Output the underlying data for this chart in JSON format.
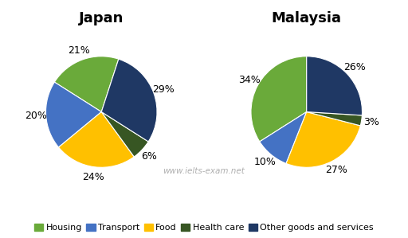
{
  "japan": {
    "title": "Japan",
    "values": [
      21,
      20,
      24,
      6,
      29
    ],
    "labels": [
      "21%",
      "20%",
      "24%",
      "6%",
      "29%"
    ],
    "startangle": 72
  },
  "malaysia": {
    "title": "Malaysia",
    "values": [
      34,
      10,
      27,
      3,
      26
    ],
    "labels": [
      "34%",
      "10%",
      "27%",
      "3%",
      "26%"
    ],
    "startangle": 90
  },
  "colors": [
    "#6aaa3a",
    "#4472c4",
    "#ffc000",
    "#375623",
    "#1f3864"
  ],
  "legend_labels": [
    "Housing",
    "Transport",
    "Food",
    "Health care",
    "Other goods and services"
  ],
  "watermark": "www.ielts-exam.net",
  "watermark_color": "#b0b0b0",
  "title_fontsize": 13,
  "label_fontsize": 9,
  "legend_fontsize": 8,
  "background_color": "#ffffff"
}
